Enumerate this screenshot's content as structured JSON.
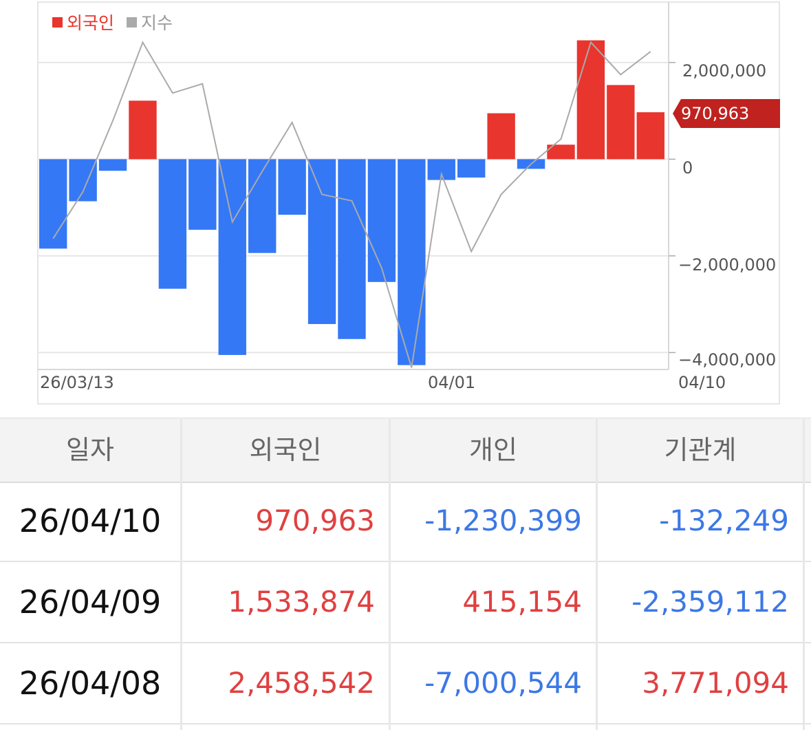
{
  "colors": {
    "positive": "#e8352e",
    "negative": "#3478f6",
    "index_line": "#aaaaaa",
    "latest_tag": "#c0221f"
  },
  "chart_data": {
    "type": "bar",
    "legend": [
      {
        "label": "외국인",
        "color": "#e8352e",
        "text_color": "#e8352e"
      },
      {
        "label": "지수",
        "color": "#aaaaaa",
        "text_color": "#999999"
      }
    ],
    "y_tick_labels": [
      "2,000,000",
      "0",
      "−2,000,000",
      "−4,000,000"
    ],
    "y_ticks": [
      2000000,
      0,
      -2000000,
      -4000000
    ],
    "ylim": [
      -4350000,
      3250000
    ],
    "x_labels": [
      "26/03/13",
      "04/01",
      "04/10"
    ],
    "latest_value_label": "970,963",
    "foreign_net": [
      -1850000,
      -870000,
      -240000,
      1210000,
      -2680000,
      -1460000,
      -4050000,
      -1940000,
      -1150000,
      -3410000,
      -3720000,
      -2540000,
      -4260000,
      -430000,
      -380000,
      950000,
      -200000,
      300000,
      2458542,
      1533874,
      970963
    ],
    "index_series": [
      -0.18,
      0.33,
      1.1,
      1.95,
      1.4,
      1.5,
      0.0,
      0.55,
      1.08,
      0.3,
      0.23,
      -0.5,
      -1.58,
      0.52,
      -0.32,
      0.3,
      0.63,
      0.9,
      1.95,
      1.6,
      1.85
    ],
    "index_range": [
      -1.6,
      2.2
    ]
  },
  "table": {
    "headers": [
      "일자",
      "외국인",
      "개인",
      "기관계"
    ],
    "rows": [
      {
        "date": "26/04/10",
        "foreign": "970,963",
        "individual": "-1,230,399",
        "institution": "-132,249"
      },
      {
        "date": "26/04/09",
        "foreign": "1,533,874",
        "individual": "415,154",
        "institution": "-2,359,112"
      },
      {
        "date": "26/04/08",
        "foreign": "2,458,542",
        "individual": "-7,000,544",
        "institution": "3,771,094"
      }
    ]
  }
}
